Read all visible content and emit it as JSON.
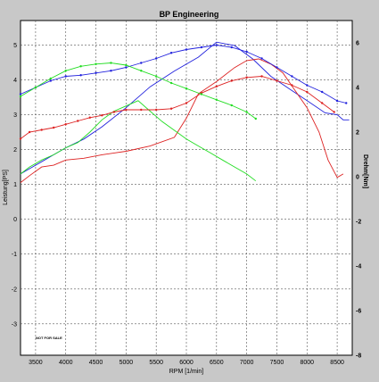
{
  "chart_data": {
    "type": "line",
    "title": "BP Engineering",
    "xlabel": "RPM [1/min]",
    "ylabel_left": "Leistung[PS]",
    "ylabel_right": "Drehm[Nm]",
    "xlim": [
      3250,
      8750
    ],
    "ylim_left": [
      -3.9,
      5.7
    ],
    "ylim_right": [
      -8,
      7
    ],
    "x_ticks": [
      3500,
      4000,
      4500,
      5000,
      5500,
      6000,
      6500,
      7000,
      7500,
      8000,
      8500
    ],
    "y_ticks_left": [
      -3,
      -2,
      -1,
      0,
      1,
      2,
      3,
      4,
      5
    ],
    "y_ticks_right": [
      -8,
      -6,
      -4,
      -2,
      0,
      2,
      4,
      6
    ],
    "grid": true,
    "annotation": "NOT FOR SALE",
    "colors": {
      "background": "#c8c8c8",
      "plot": "#ffffff",
      "grid": "#555555"
    },
    "series": [
      {
        "color": "#2222dd",
        "axis": "left",
        "markers": false,
        "x": [
          3250,
          3400,
          3600,
          3800,
          4000,
          4300,
          4600,
          5000,
          5400,
          5800,
          6200,
          6500,
          6800,
          7100,
          7400,
          7700,
          8000,
          8300,
          8500,
          8600,
          8700
        ],
        "y": [
          1.3,
          1.45,
          1.65,
          1.85,
          2.05,
          2.3,
          2.65,
          3.2,
          3.8,
          4.25,
          4.65,
          5.08,
          4.98,
          4.6,
          4.1,
          3.75,
          3.4,
          3.05,
          3.0,
          2.85,
          2.85
        ]
      },
      {
        "color": "#dd2222",
        "axis": "left",
        "markers": false,
        "x": [
          3250,
          3400,
          3600,
          3800,
          4000,
          4300,
          4600,
          5000,
          5400,
          5800,
          6000,
          6200,
          6500,
          6800,
          7000,
          7200,
          7400,
          7600,
          7800,
          8000,
          8200,
          8350,
          8500,
          8600
        ],
        "y": [
          1.05,
          1.25,
          1.5,
          1.55,
          1.7,
          1.75,
          1.85,
          1.95,
          2.1,
          2.35,
          2.9,
          3.6,
          3.95,
          4.35,
          4.55,
          4.6,
          4.45,
          4.2,
          3.7,
          3.2,
          2.5,
          1.7,
          1.2,
          1.3
        ]
      },
      {
        "color": "#22dd22",
        "axis": "left",
        "markers": false,
        "x": [
          3250,
          3400,
          3600,
          3800,
          4000,
          4200,
          4400,
          4600,
          4800,
          5000,
          5200,
          5400,
          5600,
          5800,
          6000,
          6200,
          6400,
          6600,
          6800,
          7000,
          7150
        ],
        "y": [
          1.3,
          1.5,
          1.7,
          1.85,
          2.05,
          2.2,
          2.5,
          2.85,
          3.1,
          3.25,
          3.4,
          3.1,
          2.8,
          2.55,
          2.3,
          2.1,
          1.9,
          1.7,
          1.5,
          1.3,
          1.1
        ]
      },
      {
        "color": "#2222dd",
        "axis": "right",
        "markers": true,
        "x": [
          3250,
          3500,
          3750,
          4000,
          4250,
          4500,
          4750,
          5000,
          5250,
          5500,
          5750,
          6000,
          6250,
          6500,
          6750,
          7000,
          7250,
          7500,
          7750,
          8000,
          8250,
          8500,
          8650
        ],
        "y": [
          3.7,
          4.0,
          4.3,
          4.5,
          4.55,
          4.65,
          4.75,
          4.9,
          5.1,
          5.3,
          5.55,
          5.7,
          5.8,
          5.9,
          5.8,
          5.6,
          5.3,
          4.9,
          4.5,
          4.1,
          3.8,
          3.4,
          3.3
        ]
      },
      {
        "color": "#dd2222",
        "axis": "right",
        "markers": true,
        "x": [
          3250,
          3400,
          3600,
          3800,
          4000,
          4200,
          4400,
          4600,
          4800,
          5000,
          5250,
          5500,
          5750,
          6000,
          6250,
          6500,
          6750,
          7000,
          7250,
          7500,
          7750,
          8000,
          8250,
          8450
        ],
        "y": [
          1.7,
          2.0,
          2.1,
          2.2,
          2.35,
          2.5,
          2.65,
          2.75,
          2.9,
          3.0,
          3.0,
          3.0,
          3.05,
          3.3,
          3.75,
          4.05,
          4.3,
          4.45,
          4.5,
          4.3,
          4.1,
          3.8,
          3.3,
          2.9
        ]
      },
      {
        "color": "#22dd22",
        "axis": "right",
        "markers": true,
        "x": [
          3250,
          3500,
          3750,
          4000,
          4250,
          4500,
          4750,
          5000,
          5250,
          5500,
          5750,
          6000,
          6250,
          6500,
          6750,
          7000,
          7150
        ],
        "y": [
          3.6,
          4.0,
          4.4,
          4.75,
          4.95,
          5.05,
          5.1,
          5.0,
          4.75,
          4.5,
          4.2,
          3.95,
          3.7,
          3.45,
          3.2,
          2.9,
          2.6
        ]
      }
    ]
  }
}
